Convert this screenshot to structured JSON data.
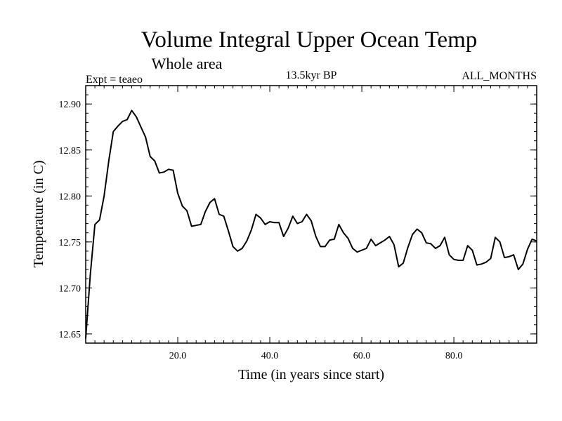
{
  "chart_data": {
    "type": "line",
    "title": "Volume Integral Upper Ocean Temp",
    "subtitle": "Whole area",
    "expt_label": "Expt = teaeo",
    "period_label": "13.5kyr BP",
    "months_label": "ALL_MONTHS",
    "xlabel": "Time (in years since start)",
    "ylabel": "Temperature (in C)",
    "xlim": [
      0,
      98
    ],
    "ylim": [
      12.64,
      12.92
    ],
    "x_ticks": [
      20,
      40,
      60,
      80
    ],
    "x_tick_labels": [
      "20.0",
      "40.0",
      "60.0",
      "80.0"
    ],
    "y_ticks": [
      12.65,
      12.7,
      12.75,
      12.8,
      12.85,
      12.9
    ],
    "y_tick_labels": [
      "12.65",
      "12.70",
      "12.75",
      "12.80",
      "12.85",
      "12.90"
    ],
    "x_minor_step": 2,
    "y_minor_step": 0.01,
    "grid": false,
    "series": [
      {
        "name": "Temperature",
        "color": "#000000",
        "x_start": 0,
        "x_step": 1,
        "values": [
          12.645,
          12.715,
          12.769,
          12.774,
          12.8,
          12.838,
          12.87,
          12.876,
          12.881,
          12.883,
          12.893,
          12.886,
          12.875,
          12.864,
          12.843,
          12.838,
          12.825,
          12.826,
          12.829,
          12.828,
          12.803,
          12.789,
          12.784,
          12.767,
          12.768,
          12.769,
          12.783,
          12.793,
          12.797,
          12.78,
          12.778,
          12.762,
          12.745,
          12.74,
          12.743,
          12.751,
          12.763,
          12.78,
          12.776,
          12.769,
          12.772,
          12.771,
          12.771,
          12.756,
          12.765,
          12.778,
          12.77,
          12.772,
          12.78,
          12.773,
          12.756,
          12.745,
          12.745,
          12.752,
          12.753,
          12.769,
          12.76,
          12.754,
          12.743,
          12.739,
          12.741,
          12.743,
          12.753,
          12.746,
          12.749,
          12.752,
          12.756,
          12.747,
          12.723,
          12.727,
          12.744,
          12.758,
          12.764,
          12.76,
          12.749,
          12.748,
          12.743,
          12.746,
          12.755,
          12.736,
          12.731,
          12.73,
          12.73,
          12.746,
          12.741,
          12.725,
          12.726,
          12.728,
          12.732,
          12.755,
          12.75,
          12.733,
          12.734,
          12.736,
          12.72,
          12.726,
          12.742,
          12.753,
          12.751
        ]
      }
    ]
  }
}
